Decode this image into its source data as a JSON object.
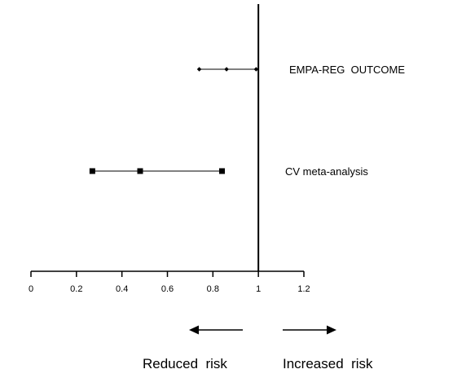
{
  "chart_data": {
    "type": "forest",
    "x_axis": {
      "min": 0,
      "max": 1.2,
      "ticks": [
        0,
        0.2,
        0.4,
        0.6,
        0.8,
        1,
        1.2
      ],
      "tick_labels": [
        "0",
        "0.2",
        "0.4",
        "0.6",
        "0.8",
        "1",
        "1.2"
      ],
      "reference_line": 1
    },
    "studies": [
      {
        "label": "EMPA-REG  OUTCOME",
        "estimate": 0.86,
        "lower": 0.74,
        "upper": 0.99,
        "marker": "diamond-small"
      },
      {
        "label": "CV meta-analysis",
        "estimate": 0.48,
        "lower": 0.27,
        "upper": 0.84,
        "marker": "square"
      }
    ],
    "direction_labels": {
      "left": "Reduced  risk",
      "right": "Increased  risk"
    }
  }
}
